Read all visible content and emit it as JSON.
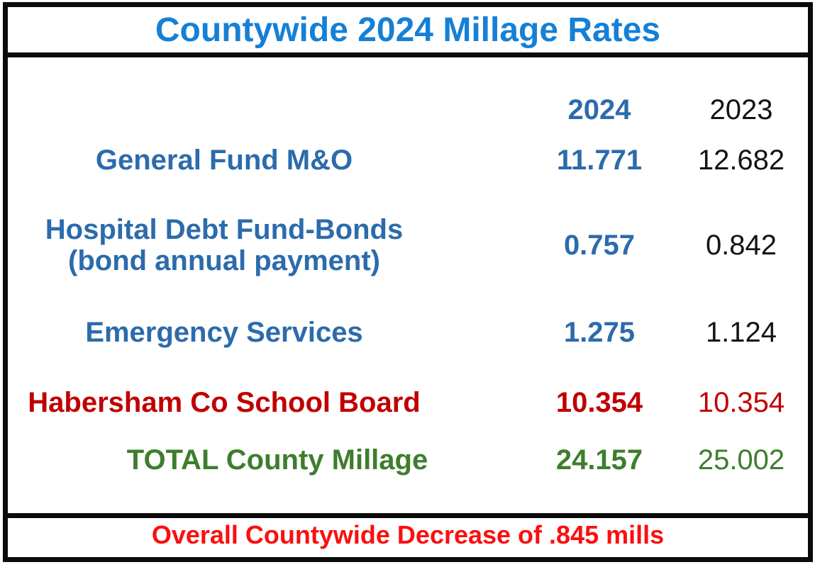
{
  "title": "Countywide 2024 Millage Rates",
  "header": {
    "col_2024": "2024",
    "col_2023": "2023"
  },
  "rows": [
    {
      "label": "General Fund M&O",
      "sublabel": "",
      "v2024": "11.771",
      "v2023": "12.682",
      "color": "blue"
    },
    {
      "label": "Hospital Debt Fund-Bonds",
      "sublabel": "(bond annual payment)",
      "v2024": "0.757",
      "v2023": "0.842",
      "color": "blue"
    },
    {
      "label": "Emergency Services",
      "sublabel": "",
      "v2024": "1.275",
      "v2023": "1.124",
      "color": "blue"
    },
    {
      "label": "Habersham Co School Board",
      "sublabel": "",
      "v2024": "10.354",
      "v2023": "10.354",
      "color": "red"
    },
    {
      "label": "TOTAL County Millage",
      "sublabel": "",
      "v2024": "24.157",
      "v2023": "25.002",
      "color": "green"
    }
  ],
  "footer": {
    "text": "Overall Countywide Decrease of .845 mills"
  },
  "colors": {
    "title_blue": "#1580d6",
    "label_blue": "#2c6bac",
    "value_black": "#141414",
    "school_board_red": "#c00000",
    "total_green": "#3e7d2d",
    "footer_red": "#fb0f0f",
    "border_black": "#0b0b0b"
  }
}
